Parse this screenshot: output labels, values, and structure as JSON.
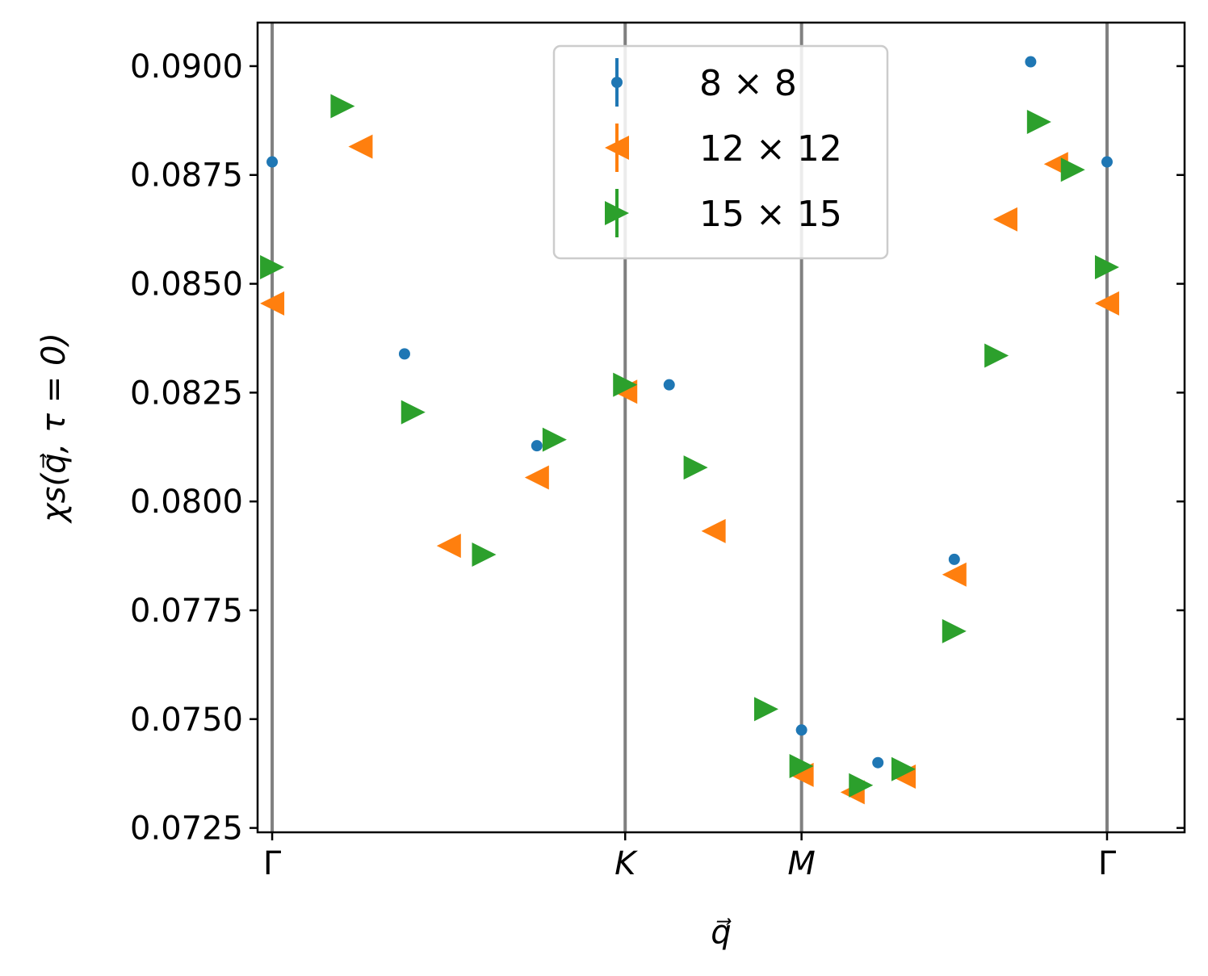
{
  "chart_data": {
    "type": "scatter",
    "title": "",
    "xlabel": "q⃗",
    "ylabel": "χs(q⃗, τ = 0)",
    "ylim": [
      0.0724,
      0.091
    ],
    "xlim": [
      -0.05,
      3.13
    ],
    "y_ticks": [
      "0.0725",
      "0.0750",
      "0.0775",
      "0.0800",
      "0.0825",
      "0.0850",
      "0.0875",
      "0.0900"
    ],
    "y_tick_values": [
      0.0725,
      0.075,
      0.0775,
      0.08,
      0.0825,
      0.085,
      0.0875,
      0.09
    ],
    "x_ticks": [
      {
        "label": "Γ",
        "x": 0.0
      },
      {
        "label": "K",
        "x": 1.211
      },
      {
        "label": "M",
        "x": 1.816
      },
      {
        "label": "Γ",
        "x": 2.864
      }
    ],
    "grid": false,
    "legend": "top-center",
    "colors": {
      "s8": "#1f77b4",
      "s12": "#ff7f0e",
      "s15": "#2ca02c",
      "vline": "#808080"
    },
    "series": [
      {
        "name": "8 × 8",
        "marker": "circle",
        "points": [
          [
            0.0,
            0.0878
          ],
          [
            0.454,
            0.08339
          ],
          [
            0.908,
            0.08128
          ],
          [
            1.362,
            0.08268
          ],
          [
            1.816,
            0.07475
          ],
          [
            2.078,
            0.074
          ],
          [
            2.34,
            0.07867
          ],
          [
            2.602,
            0.0901
          ],
          [
            2.864,
            0.0878
          ]
        ]
      },
      {
        "name": "12 × 12",
        "marker": "triangle-left",
        "points": [
          [
            0.0,
            0.08455
          ],
          [
            0.303,
            0.08815
          ],
          [
            0.606,
            0.07898
          ],
          [
            0.908,
            0.08055
          ],
          [
            1.211,
            0.08252
          ],
          [
            1.514,
            0.07932
          ],
          [
            1.816,
            0.07372
          ],
          [
            1.991,
            0.07332
          ],
          [
            2.166,
            0.07368
          ],
          [
            2.34,
            0.07832
          ],
          [
            2.515,
            0.08648
          ],
          [
            2.689,
            0.08775
          ],
          [
            2.864,
            0.08455
          ]
        ]
      },
      {
        "name": "15 × 15",
        "marker": "triangle-right",
        "points": [
          [
            0.0,
            0.08538
          ],
          [
            0.242,
            0.08908
          ],
          [
            0.484,
            0.08205
          ],
          [
            0.727,
            0.07878
          ],
          [
            0.969,
            0.08142
          ],
          [
            1.211,
            0.08268
          ],
          [
            1.453,
            0.08078
          ],
          [
            1.695,
            0.07523
          ],
          [
            1.816,
            0.07392
          ],
          [
            2.02,
            0.07348
          ],
          [
            2.166,
            0.07385
          ],
          [
            2.34,
            0.07702
          ],
          [
            2.485,
            0.08335
          ],
          [
            2.631,
            0.08872
          ],
          [
            2.747,
            0.08762
          ],
          [
            2.864,
            0.08538
          ]
        ]
      }
    ]
  }
}
